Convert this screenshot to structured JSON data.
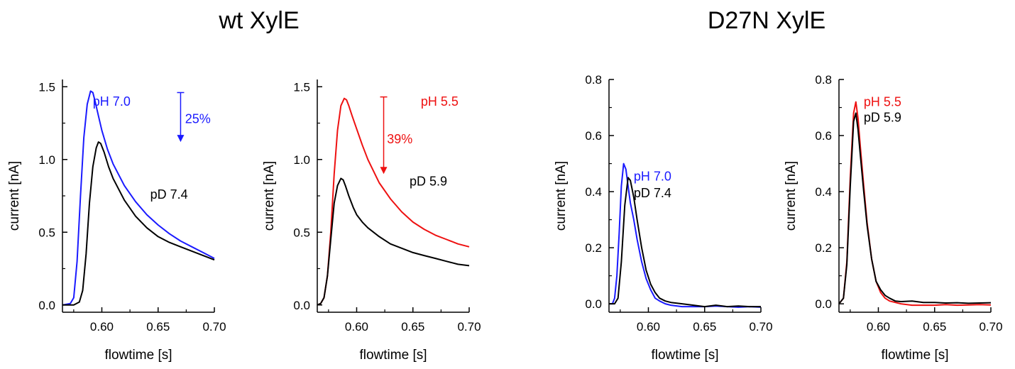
{
  "headings": {
    "left": "wt XylE",
    "right": "D27N XylE"
  },
  "colors": {
    "black": "#000000",
    "blue": "#1a1aff",
    "red": "#ee1111"
  },
  "chart_data": [
    {
      "type": "line",
      "group": "wt XylE",
      "xlabel": "flowtime [s]",
      "ylabel": "current [nA]",
      "xlim": [
        0.565,
        0.7
      ],
      "ylim": [
        -0.05,
        1.55
      ],
      "xticks": [
        "0.60",
        "0.65",
        "0.70"
      ],
      "yticks": [
        "0.0",
        "0.5",
        "1.0",
        "1.5"
      ],
      "series": [
        {
          "name": "pH 7.0",
          "color": "#1a1aff",
          "x": [
            0.565,
            0.572,
            0.575,
            0.578,
            0.581,
            0.584,
            0.587,
            0.59,
            0.592,
            0.594,
            0.597,
            0.6,
            0.605,
            0.61,
            0.62,
            0.63,
            0.64,
            0.65,
            0.66,
            0.67,
            0.68,
            0.69,
            0.7
          ],
          "y": [
            0.0,
            0.01,
            0.05,
            0.3,
            0.75,
            1.15,
            1.38,
            1.47,
            1.46,
            1.4,
            1.3,
            1.2,
            1.07,
            0.97,
            0.82,
            0.71,
            0.62,
            0.55,
            0.49,
            0.44,
            0.4,
            0.36,
            0.32
          ]
        },
        {
          "name": "pD 7.4",
          "color": "#000000",
          "x": [
            0.565,
            0.575,
            0.58,
            0.583,
            0.586,
            0.589,
            0.592,
            0.595,
            0.597,
            0.599,
            0.602,
            0.606,
            0.61,
            0.62,
            0.63,
            0.64,
            0.65,
            0.66,
            0.67,
            0.68,
            0.69,
            0.7
          ],
          "y": [
            0.0,
            0.0,
            0.02,
            0.1,
            0.35,
            0.7,
            0.95,
            1.08,
            1.12,
            1.11,
            1.05,
            0.95,
            0.87,
            0.72,
            0.61,
            0.53,
            0.47,
            0.43,
            0.4,
            0.37,
            0.34,
            0.31
          ]
        }
      ],
      "annotations": [
        {
          "text": "pH 7.0",
          "color": "#1a1aff",
          "x": 0.592,
          "y": 1.4
        },
        {
          "text": "pD 7.4",
          "color": "#000000",
          "x": 0.643,
          "y": 0.76
        },
        {
          "text": "25%",
          "color": "#1a1aff",
          "x": 0.674,
          "y": 1.28
        }
      ],
      "arrow": {
        "color": "#1a1aff",
        "x": 0.67,
        "y_from": 1.46,
        "y_to": 1.12
      }
    },
    {
      "type": "line",
      "group": "wt XylE",
      "xlabel": "flowtime [s]",
      "ylabel": "current [nA]",
      "xlim": [
        0.565,
        0.7
      ],
      "ylim": [
        -0.05,
        1.55
      ],
      "xticks": [
        "0.60",
        "0.65",
        "0.70"
      ],
      "yticks": [
        "0.0",
        "0.5",
        "1.0",
        "1.5"
      ],
      "series": [
        {
          "name": "pH 5.5",
          "color": "#ee1111",
          "x": [
            0.565,
            0.568,
            0.571,
            0.574,
            0.577,
            0.58,
            0.583,
            0.586,
            0.589,
            0.591,
            0.593,
            0.596,
            0.6,
            0.605,
            0.61,
            0.62,
            0.63,
            0.64,
            0.65,
            0.66,
            0.67,
            0.68,
            0.69,
            0.7
          ],
          "y": [
            0.0,
            0.01,
            0.05,
            0.2,
            0.5,
            0.9,
            1.2,
            1.37,
            1.42,
            1.41,
            1.37,
            1.3,
            1.21,
            1.1,
            1.0,
            0.84,
            0.73,
            0.64,
            0.57,
            0.52,
            0.48,
            0.45,
            0.42,
            0.4
          ]
        },
        {
          "name": "pD 5.9",
          "color": "#000000",
          "x": [
            0.565,
            0.568,
            0.571,
            0.574,
            0.577,
            0.58,
            0.583,
            0.586,
            0.588,
            0.59,
            0.593,
            0.597,
            0.6,
            0.605,
            0.61,
            0.62,
            0.63,
            0.64,
            0.65,
            0.66,
            0.67,
            0.68,
            0.69,
            0.7
          ],
          "y": [
            0.0,
            0.01,
            0.05,
            0.2,
            0.45,
            0.7,
            0.82,
            0.87,
            0.86,
            0.82,
            0.75,
            0.67,
            0.62,
            0.57,
            0.53,
            0.47,
            0.42,
            0.39,
            0.36,
            0.34,
            0.32,
            0.3,
            0.28,
            0.27
          ]
        }
      ],
      "annotations": [
        {
          "text": "pH 5.5",
          "color": "#ee1111",
          "x": 0.657,
          "y": 1.4
        },
        {
          "text": "39%",
          "color": "#ee1111",
          "x": 0.627,
          "y": 1.14
        },
        {
          "text": "pD 5.9",
          "color": "#000000",
          "x": 0.647,
          "y": 0.85
        }
      ],
      "arrow": {
        "color": "#ee1111",
        "x": 0.624,
        "y_from": 1.43,
        "y_to": 0.9
      }
    },
    {
      "type": "line",
      "group": "D27N XylE",
      "xlabel": "flowtime [s]",
      "ylabel": "current [nA]",
      "xlim": [
        0.565,
        0.7
      ],
      "ylim": [
        -0.03,
        0.8
      ],
      "xticks": [
        "0.60",
        "0.65",
        "0.70"
      ],
      "yticks": [
        "0.0",
        "0.2",
        "0.4",
        "0.6",
        "0.8"
      ],
      "series": [
        {
          "name": "pH 7.0",
          "color": "#1a1aff",
          "x": [
            0.565,
            0.568,
            0.57,
            0.572,
            0.574,
            0.576,
            0.578,
            0.58,
            0.582,
            0.584,
            0.587,
            0.59,
            0.594,
            0.598,
            0.602,
            0.606,
            0.61,
            0.615,
            0.62,
            0.63,
            0.64,
            0.65,
            0.66,
            0.67,
            0.68,
            0.69,
            0.7
          ],
          "y": [
            0.0,
            0.0,
            0.02,
            0.1,
            0.25,
            0.42,
            0.5,
            0.48,
            0.42,
            0.36,
            0.3,
            0.23,
            0.15,
            0.09,
            0.05,
            0.02,
            0.01,
            0.0,
            -0.005,
            -0.01,
            -0.01,
            -0.01,
            -0.008,
            -0.01,
            -0.012,
            -0.01,
            -0.012
          ]
        },
        {
          "name": "pD 7.4",
          "color": "#000000",
          "x": [
            0.565,
            0.57,
            0.573,
            0.576,
            0.579,
            0.582,
            0.584,
            0.587,
            0.59,
            0.594,
            0.598,
            0.602,
            0.606,
            0.61,
            0.615,
            0.62,
            0.63,
            0.64,
            0.65,
            0.66,
            0.67,
            0.68,
            0.69,
            0.7
          ],
          "y": [
            0.0,
            0.0,
            0.02,
            0.15,
            0.35,
            0.45,
            0.44,
            0.38,
            0.3,
            0.2,
            0.12,
            0.07,
            0.04,
            0.02,
            0.01,
            0.005,
            0.0,
            -0.005,
            -0.01,
            -0.005,
            -0.01,
            -0.008,
            -0.01,
            -0.01
          ]
        }
      ],
      "annotations": [
        {
          "text": "pH 7.0",
          "color": "#1a1aff",
          "x": 0.587,
          "y": 0.455
        },
        {
          "text": "pD 7.4",
          "color": "#000000",
          "x": 0.587,
          "y": 0.395
        }
      ]
    },
    {
      "type": "line",
      "group": "D27N XylE",
      "xlabel": "flowtime [s]",
      "ylabel": "current [nA]",
      "xlim": [
        0.565,
        0.7
      ],
      "ylim": [
        -0.03,
        0.8
      ],
      "xticks": [
        "0.60",
        "0.65",
        "0.70"
      ],
      "yticks": [
        "0.0",
        "0.2",
        "0.4",
        "0.6",
        "0.8"
      ],
      "series": [
        {
          "name": "pH 5.5",
          "color": "#ee1111",
          "x": [
            0.565,
            0.569,
            0.572,
            0.575,
            0.578,
            0.58,
            0.582,
            0.584,
            0.587,
            0.59,
            0.594,
            0.598,
            0.602,
            0.606,
            0.61,
            0.615,
            0.62,
            0.63,
            0.64,
            0.65,
            0.66,
            0.67,
            0.68,
            0.69,
            0.7
          ],
          "y": [
            0.0,
            0.02,
            0.15,
            0.45,
            0.68,
            0.72,
            0.66,
            0.56,
            0.42,
            0.29,
            0.16,
            0.08,
            0.04,
            0.02,
            0.01,
            0.005,
            0.0,
            -0.005,
            -0.005,
            -0.005,
            -0.003,
            -0.005,
            -0.004,
            -0.003,
            -0.004
          ]
        },
        {
          "name": "pD 5.9",
          "color": "#000000",
          "x": [
            0.565,
            0.569,
            0.572,
            0.575,
            0.578,
            0.58,
            0.582,
            0.584,
            0.587,
            0.59,
            0.594,
            0.598,
            0.602,
            0.606,
            0.61,
            0.615,
            0.62,
            0.63,
            0.64,
            0.65,
            0.66,
            0.67,
            0.68,
            0.69,
            0.7
          ],
          "y": [
            0.0,
            0.02,
            0.14,
            0.42,
            0.65,
            0.68,
            0.62,
            0.53,
            0.4,
            0.28,
            0.16,
            0.08,
            0.05,
            0.03,
            0.02,
            0.01,
            0.008,
            0.01,
            0.005,
            0.005,
            0.003,
            0.004,
            0.002,
            0.003,
            0.004
          ]
        }
      ],
      "annotations": [
        {
          "text": "pH 5.5",
          "color": "#ee1111",
          "x": 0.587,
          "y": 0.72
        },
        {
          "text": "pD 5.9",
          "color": "#000000",
          "x": 0.587,
          "y": 0.665
        }
      ]
    }
  ]
}
